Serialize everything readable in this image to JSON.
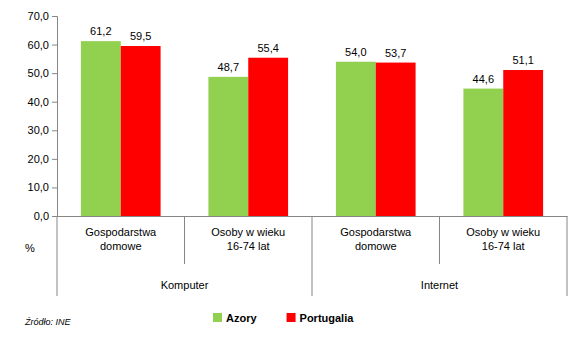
{
  "chart_data": {
    "type": "bar",
    "categories": [
      "Gospodarstwa domowe",
      "Osoby w wieku 16-74 lat",
      "Gospodarstwa domowe",
      "Osoby w wieku 16-74 lat"
    ],
    "category_groups": [
      "Komputer",
      "Internet"
    ],
    "series": [
      {
        "name": "Azory",
        "color": "#92d050",
        "values": [
          61.2,
          48.7,
          54.0,
          44.6
        ],
        "value_labels": [
          "61,2",
          "48,7",
          "54,0",
          "44,6"
        ]
      },
      {
        "name": "Portugalia",
        "color": "#ff0000",
        "values": [
          59.5,
          55.4,
          53.7,
          51.1
        ],
        "value_labels": [
          "59,5",
          "55,4",
          "53,7",
          "51,1"
        ]
      }
    ],
    "ylim": [
      0,
      70
    ],
    "yticks": [
      {
        "value": 0,
        "label": "0,0"
      },
      {
        "value": 10,
        "label": "10,0"
      },
      {
        "value": 20,
        "label": "20,0"
      },
      {
        "value": 30,
        "label": "30,0"
      },
      {
        "value": 40,
        "label": "40,0"
      },
      {
        "value": 50,
        "label": "50,0"
      },
      {
        "value": 60,
        "label": "60,0"
      },
      {
        "value": 70,
        "label": "70,0"
      }
    ],
    "y_label": "%",
    "source": "Źródło: INE",
    "grid": false,
    "data_labels": true,
    "legend": "bottom"
  }
}
